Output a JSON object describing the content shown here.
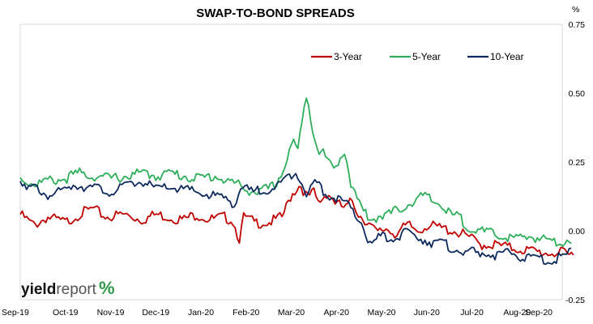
{
  "chart_data": {
    "type": "line",
    "title": "SWAP-TO-BOND SPREADS",
    "y_unit": "%",
    "ylim": [
      -0.25,
      0.75
    ],
    "y_ticks": [
      "0.75",
      "0.50",
      "0.25",
      "0.00",
      "-0.25"
    ],
    "y_tick_values": [
      0.75,
      0.5,
      0.25,
      0.0,
      -0.25
    ],
    "y_axis_side": "right",
    "x_ticks": [
      "Sep-19",
      "Oct-19",
      "Nov-19",
      "Dec-19",
      "Jan-20",
      "Feb-20",
      "Mar-20",
      "Apr-20",
      "May-20",
      "Jun-20",
      "Jul-20",
      "Aug-20",
      "Sep-20"
    ],
    "grid": false,
    "legend_position": "top-right",
    "series": [
      {
        "name": "3-Year",
        "color": "#c00000",
        "keypoints": [
          [
            0,
            0.06
          ],
          [
            0.3,
            0.02
          ],
          [
            0.6,
            0.05
          ],
          [
            1.0,
            0.03
          ],
          [
            1.3,
            0.06
          ],
          [
            1.6,
            0.08
          ],
          [
            1.9,
            0.05
          ],
          [
            2.3,
            0.06
          ],
          [
            2.7,
            0.04
          ],
          [
            3.0,
            0.06
          ],
          [
            3.3,
            0.05
          ],
          [
            3.6,
            0.04
          ],
          [
            3.9,
            0.06
          ],
          [
            4.2,
            0.04
          ],
          [
            4.5,
            0.05
          ],
          [
            4.7,
            0.04
          ],
          [
            4.85,
            -0.03
          ],
          [
            4.95,
            0.05
          ],
          [
            5.2,
            0.03
          ],
          [
            5.5,
            0.03
          ],
          [
            5.8,
            0.05
          ],
          [
            6.0,
            0.13
          ],
          [
            6.2,
            0.17
          ],
          [
            6.35,
            0.12
          ],
          [
            6.5,
            0.14
          ],
          [
            6.6,
            0.1
          ],
          [
            6.8,
            0.14
          ],
          [
            7.0,
            0.1
          ],
          [
            7.2,
            0.08
          ],
          [
            7.35,
            0.11
          ],
          [
            7.5,
            0.06
          ],
          [
            7.7,
            0.03
          ],
          [
            7.9,
            -0.01
          ],
          [
            8.1,
            0.01
          ],
          [
            8.3,
            -0.01
          ],
          [
            8.6,
            0.02
          ],
          [
            8.8,
            0.0
          ],
          [
            9.0,
            0.02
          ],
          [
            9.3,
            0.01
          ],
          [
            9.6,
            0.0
          ],
          [
            9.9,
            -0.02
          ],
          [
            10.2,
            -0.05
          ],
          [
            10.5,
            -0.05
          ],
          [
            10.8,
            -0.06
          ],
          [
            11.2,
            -0.07
          ],
          [
            11.6,
            -0.08
          ],
          [
            12.0,
            -0.08
          ],
          [
            12.15,
            -0.09
          ],
          [
            12.25,
            -0.08
          ]
        ]
      },
      {
        "name": "5-Year",
        "color": "#2eae5a",
        "keypoints": [
          [
            0,
            0.19
          ],
          [
            0.3,
            0.17
          ],
          [
            0.6,
            0.18
          ],
          [
            1.0,
            0.19
          ],
          [
            1.3,
            0.21
          ],
          [
            1.6,
            0.2
          ],
          [
            2.0,
            0.19
          ],
          [
            2.4,
            0.2
          ],
          [
            2.7,
            0.21
          ],
          [
            3.0,
            0.2
          ],
          [
            3.3,
            0.21
          ],
          [
            3.6,
            0.2
          ],
          [
            4.0,
            0.19
          ],
          [
            4.3,
            0.2
          ],
          [
            4.6,
            0.18
          ],
          [
            4.8,
            0.17
          ],
          [
            5.0,
            0.15
          ],
          [
            5.3,
            0.14
          ],
          [
            5.6,
            0.16
          ],
          [
            5.8,
            0.21
          ],
          [
            5.95,
            0.28
          ],
          [
            6.05,
            0.33
          ],
          [
            6.15,
            0.29
          ],
          [
            6.25,
            0.4
          ],
          [
            6.35,
            0.52
          ],
          [
            6.45,
            0.38
          ],
          [
            6.6,
            0.3
          ],
          [
            6.8,
            0.26
          ],
          [
            6.95,
            0.22
          ],
          [
            7.1,
            0.27
          ],
          [
            7.2,
            0.3
          ],
          [
            7.3,
            0.18
          ],
          [
            7.45,
            0.12
          ],
          [
            7.6,
            0.07
          ],
          [
            7.8,
            0.04
          ],
          [
            8.0,
            0.06
          ],
          [
            8.2,
            0.06
          ],
          [
            8.4,
            0.08
          ],
          [
            8.6,
            0.1
          ],
          [
            8.8,
            0.11
          ],
          [
            8.9,
            0.13
          ],
          [
            9.1,
            0.11
          ],
          [
            9.3,
            0.1
          ],
          [
            9.5,
            0.06
          ],
          [
            9.7,
            0.05
          ],
          [
            9.9,
            0.02
          ],
          [
            10.1,
            0.0
          ],
          [
            10.4,
            -0.01
          ],
          [
            10.7,
            -0.02
          ],
          [
            11.0,
            -0.03
          ],
          [
            11.3,
            -0.02
          ],
          [
            11.6,
            -0.03
          ],
          [
            11.9,
            -0.04
          ],
          [
            12.2,
            -0.03
          ]
        ]
      },
      {
        "name": "10-Year",
        "color": "#0d2a5e",
        "keypoints": [
          [
            0,
            0.2
          ],
          [
            0.15,
            0.14
          ],
          [
            0.3,
            0.16
          ],
          [
            0.6,
            0.13
          ],
          [
            0.9,
            0.14
          ],
          [
            1.2,
            0.17
          ],
          [
            1.5,
            0.16
          ],
          [
            1.8,
            0.15
          ],
          [
            2.1,
            0.14
          ],
          [
            2.4,
            0.17
          ],
          [
            2.7,
            0.18
          ],
          [
            3.0,
            0.15
          ],
          [
            3.3,
            0.16
          ],
          [
            3.6,
            0.15
          ],
          [
            3.9,
            0.14
          ],
          [
            4.2,
            0.13
          ],
          [
            4.5,
            0.12
          ],
          [
            4.75,
            0.1
          ],
          [
            4.9,
            0.16
          ],
          [
            5.1,
            0.14
          ],
          [
            5.4,
            0.15
          ],
          [
            5.7,
            0.16
          ],
          [
            5.9,
            0.19
          ],
          [
            6.1,
            0.22
          ],
          [
            6.25,
            0.18
          ],
          [
            6.35,
            0.11
          ],
          [
            6.45,
            0.17
          ],
          [
            6.6,
            0.17
          ],
          [
            6.8,
            0.13
          ],
          [
            7.0,
            0.12
          ],
          [
            7.2,
            0.1
          ],
          [
            7.4,
            0.06
          ],
          [
            7.6,
            0.02
          ],
          [
            7.75,
            -0.06
          ],
          [
            7.95,
            -0.02
          ],
          [
            8.2,
            -0.03
          ],
          [
            8.5,
            -0.01
          ],
          [
            8.8,
            -0.02
          ],
          [
            9.1,
            -0.04
          ],
          [
            9.4,
            -0.05
          ],
          [
            9.7,
            -0.07
          ],
          [
            10.0,
            -0.08
          ],
          [
            10.3,
            -0.08
          ],
          [
            10.6,
            -0.09
          ],
          [
            10.9,
            -0.08
          ],
          [
            11.2,
            -0.1
          ],
          [
            11.5,
            -0.1
          ],
          [
            11.8,
            -0.11
          ],
          [
            12.0,
            -0.09
          ],
          [
            12.2,
            -0.08
          ]
        ]
      }
    ]
  },
  "logo": {
    "text_a": "yield",
    "text_b": "report",
    "text_c": "%"
  }
}
